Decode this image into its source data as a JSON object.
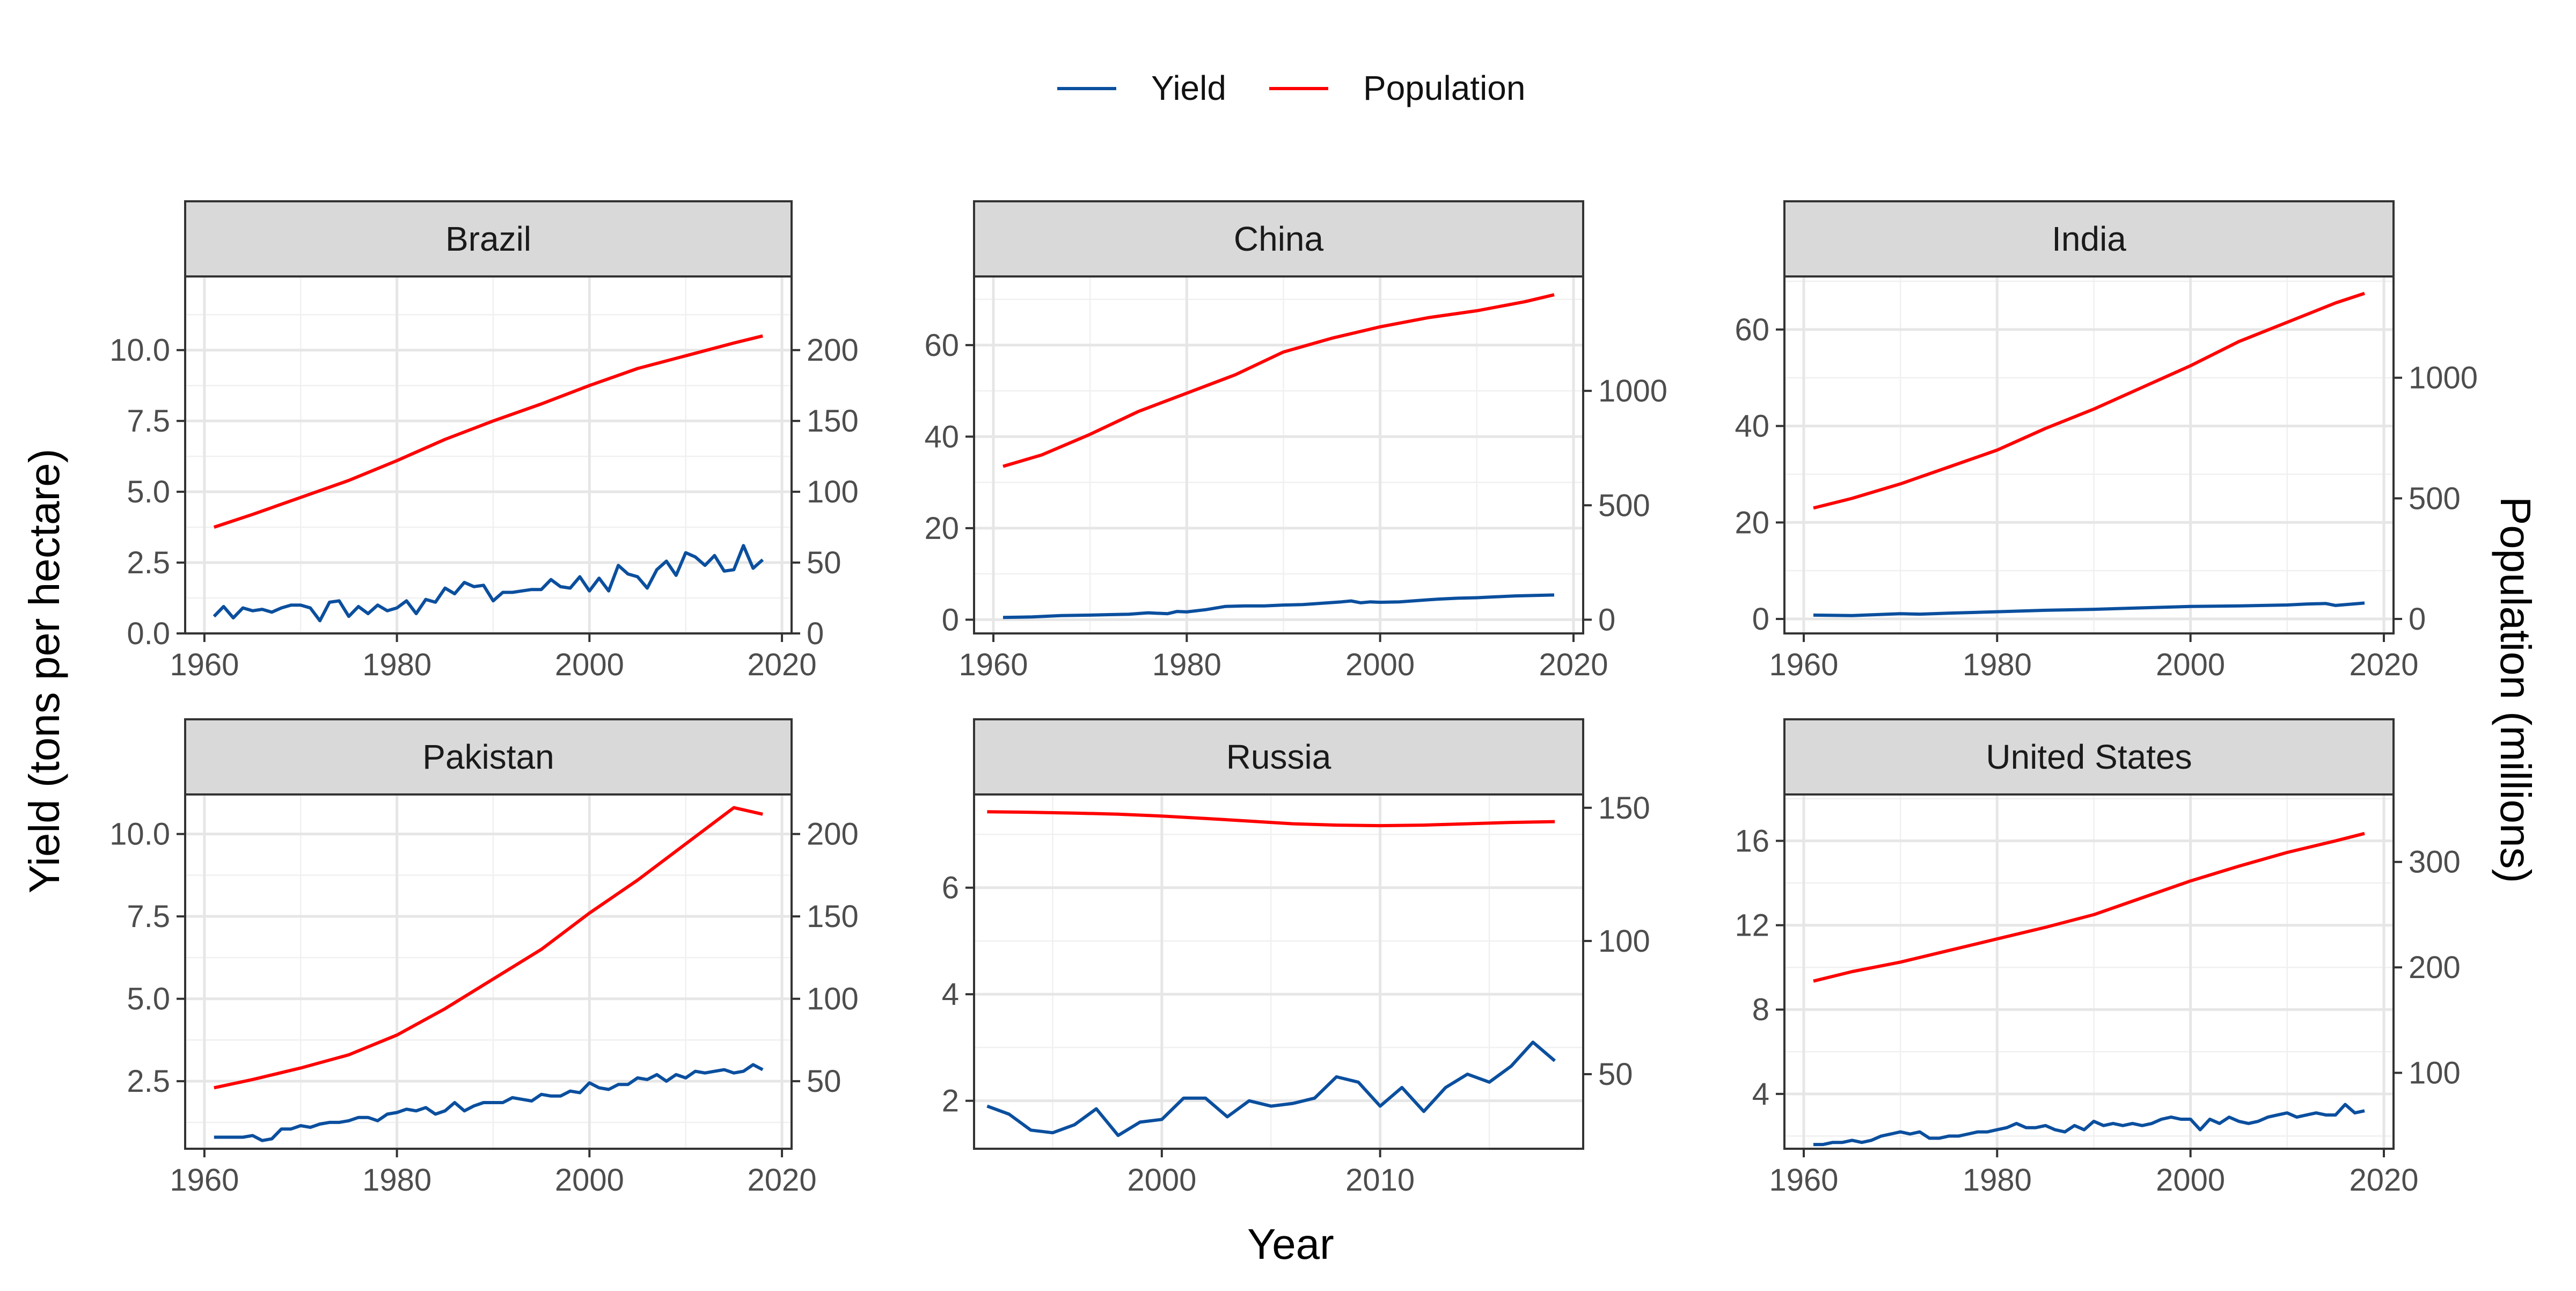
{
  "figure": {
    "legend": [
      {
        "name": "Yield",
        "color": "#0B4F9E"
      },
      {
        "name": "Population",
        "color": "#FF0000"
      }
    ],
    "xlabel": "Year",
    "ylabel_left": "Yield (tons per hectare)",
    "ylabel_right": "Population (millions)"
  },
  "chart_data": [
    {
      "type": "line",
      "title": "Brazil",
      "xlim": [
        1958,
        2021
      ],
      "x_ticks": [
        1960,
        1980,
        2000,
        2020
      ],
      "ylim": [
        0,
        12.6
      ],
      "y_ticks": [
        0.0,
        2.5,
        5.0,
        7.5,
        10.0
      ],
      "y_tick_labels": [
        "0.0",
        "2.5",
        "5.0",
        "7.5",
        "10.0"
      ],
      "y2_ticks": [
        0,
        50,
        100,
        150,
        200
      ],
      "y2_tick_labels": [
        "0",
        "50",
        "100",
        "150",
        "200"
      ],
      "pop_scale": 20.0,
      "series": [
        {
          "name": "Yield",
          "axis": "left",
          "x": [
            1961,
            1962,
            1963,
            1964,
            1965,
            1966,
            1967,
            1968,
            1969,
            1970,
            1971,
            1972,
            1973,
            1974,
            1975,
            1976,
            1977,
            1978,
            1979,
            1980,
            1981,
            1982,
            1983,
            1984,
            1985,
            1986,
            1987,
            1988,
            1989,
            1990,
            1991,
            1992,
            1993,
            1994,
            1995,
            1996,
            1997,
            1998,
            1999,
            2000,
            2001,
            2002,
            2003,
            2004,
            2005,
            2006,
            2007,
            2008,
            2009,
            2010,
            2011,
            2012,
            2013,
            2014,
            2015,
            2016,
            2017,
            2018
          ],
          "values": [
            0.6,
            0.95,
            0.55,
            0.9,
            0.8,
            0.85,
            0.75,
            0.9,
            1.0,
            1.0,
            0.9,
            0.45,
            1.1,
            1.15,
            0.6,
            0.95,
            0.7,
            1.0,
            0.8,
            0.9,
            1.15,
            0.7,
            1.2,
            1.1,
            1.6,
            1.4,
            1.8,
            1.65,
            1.7,
            1.15,
            1.45,
            1.45,
            1.5,
            1.55,
            1.55,
            1.9,
            1.65,
            1.6,
            2.0,
            1.5,
            1.95,
            1.5,
            2.4,
            2.1,
            2.0,
            1.6,
            2.25,
            2.55,
            2.05,
            2.85,
            2.7,
            2.4,
            2.75,
            2.2,
            2.25,
            3.1,
            2.3,
            2.6
          ]
        },
        {
          "name": "Population",
          "axis": "right",
          "x": [
            1961,
            1965,
            1970,
            1975,
            1980,
            1985,
            1990,
            1995,
            2000,
            2005,
            2010,
            2015,
            2018
          ],
          "values": [
            75,
            84,
            96,
            108,
            122,
            137,
            150,
            162,
            175,
            187,
            196,
            205,
            210
          ]
        }
      ]
    },
    {
      "type": "line",
      "title": "China",
      "xlim": [
        1958,
        2021
      ],
      "x_ticks": [
        1960,
        1980,
        2000,
        2020
      ],
      "ylim": [
        -3,
        75
      ],
      "y_ticks": [
        0,
        20,
        40,
        60
      ],
      "y_tick_labels": [
        "0",
        "20",
        "40",
        "60"
      ],
      "y2_ticks": [
        0,
        500,
        1000
      ],
      "y2_tick_labels": [
        "0",
        "500",
        "1000"
      ],
      "pop_scale": 20.0,
      "series": [
        {
          "name": "Yield",
          "axis": "left",
          "x": [
            1961,
            1964,
            1967,
            1970,
            1972,
            1974,
            1976,
            1978,
            1979,
            1980,
            1982,
            1984,
            1986,
            1988,
            1990,
            1992,
            1994,
            1996,
            1997,
            1998,
            1999,
            2000,
            2002,
            2004,
            2006,
            2008,
            2010,
            2012,
            2014,
            2016,
            2018
          ],
          "values": [
            0.5,
            0.6,
            0.9,
            1.0,
            1.1,
            1.2,
            1.5,
            1.3,
            1.8,
            1.7,
            2.2,
            2.9,
            3.0,
            3.0,
            3.2,
            3.3,
            3.6,
            3.9,
            4.1,
            3.7,
            3.9,
            3.8,
            3.9,
            4.2,
            4.5,
            4.7,
            4.8,
            5.0,
            5.2,
            5.3,
            5.4
          ]
        },
        {
          "name": "Population",
          "axis": "right",
          "x": [
            1961,
            1965,
            1970,
            1975,
            1980,
            1985,
            1990,
            1995,
            2000,
            2005,
            2010,
            2015,
            2018
          ],
          "values": [
            670,
            720,
            810,
            910,
            990,
            1070,
            1170,
            1230,
            1280,
            1320,
            1350,
            1390,
            1420
          ]
        }
      ]
    },
    {
      "type": "line",
      "title": "India",
      "xlim": [
        1958,
        2021
      ],
      "x_ticks": [
        1960,
        1980,
        2000,
        2020
      ],
      "ylim": [
        -3,
        71
      ],
      "y_ticks": [
        0,
        20,
        40,
        60
      ],
      "y_tick_labels": [
        "0",
        "20",
        "40",
        "60"
      ],
      "y2_ticks": [
        0,
        500,
        1000
      ],
      "y2_tick_labels": [
        "0",
        "500",
        "1000"
      ],
      "pop_scale": 20.0,
      "series": [
        {
          "name": "Yield",
          "axis": "left",
          "x": [
            1961,
            1965,
            1970,
            1972,
            1975,
            1980,
            1985,
            1990,
            1995,
            2000,
            2005,
            2010,
            2012,
            2014,
            2015,
            2018
          ],
          "values": [
            0.8,
            0.7,
            1.1,
            1.0,
            1.2,
            1.5,
            1.8,
            2.0,
            2.3,
            2.6,
            2.7,
            2.9,
            3.1,
            3.2,
            2.8,
            3.3
          ]
        },
        {
          "name": "Population",
          "axis": "right",
          "x": [
            1961,
            1965,
            1970,
            1975,
            1980,
            1985,
            1990,
            1995,
            2000,
            2005,
            2010,
            2015,
            2018
          ],
          "values": [
            460,
            500,
            560,
            630,
            700,
            790,
            870,
            960,
            1050,
            1150,
            1230,
            1310,
            1350
          ]
        }
      ]
    },
    {
      "type": "line",
      "title": "Pakistan",
      "xlim": [
        1958,
        2021
      ],
      "x_ticks": [
        1960,
        1980,
        2000,
        2020
      ],
      "ylim": [
        0.45,
        11.2
      ],
      "y_ticks": [
        2.5,
        5.0,
        7.5,
        10.0
      ],
      "y_tick_labels": [
        "2.5",
        "5.0",
        "7.5",
        "10.0"
      ],
      "y2_ticks": [
        50,
        100,
        150,
        200
      ],
      "y2_tick_labels": [
        "50",
        "100",
        "150",
        "200"
      ],
      "pop_scale": 20.0,
      "series": [
        {
          "name": "Yield",
          "axis": "left",
          "x": [
            1961,
            1962,
            1963,
            1964,
            1965,
            1966,
            1967,
            1968,
            1969,
            1970,
            1971,
            1972,
            1973,
            1974,
            1975,
            1976,
            1977,
            1978,
            1979,
            1980,
            1981,
            1982,
            1983,
            1984,
            1985,
            1986,
            1987,
            1988,
            1989,
            1990,
            1991,
            1992,
            1993,
            1994,
            1995,
            1996,
            1997,
            1998,
            1999,
            2000,
            2001,
            2002,
            2003,
            2004,
            2005,
            2006,
            2007,
            2008,
            2009,
            2010,
            2011,
            2012,
            2013,
            2014,
            2015,
            2016,
            2017,
            2018
          ],
          "values": [
            0.8,
            0.8,
            0.8,
            0.8,
            0.85,
            0.7,
            0.75,
            1.05,
            1.05,
            1.15,
            1.1,
            1.2,
            1.25,
            1.25,
            1.3,
            1.4,
            1.4,
            1.3,
            1.5,
            1.55,
            1.65,
            1.6,
            1.7,
            1.5,
            1.6,
            1.85,
            1.6,
            1.75,
            1.85,
            1.85,
            1.85,
            2.0,
            1.95,
            1.9,
            2.1,
            2.05,
            2.05,
            2.2,
            2.15,
            2.45,
            2.3,
            2.25,
            2.4,
            2.4,
            2.6,
            2.55,
            2.7,
            2.5,
            2.7,
            2.6,
            2.8,
            2.75,
            2.8,
            2.85,
            2.75,
            2.8,
            3.0,
            2.85
          ]
        },
        {
          "name": "Population",
          "axis": "right",
          "x": [
            1961,
            1965,
            1970,
            1975,
            1980,
            1985,
            1990,
            1995,
            2000,
            2005,
            2010,
            2015,
            2018
          ],
          "values": [
            46,
            51,
            58,
            66,
            78,
            94,
            112,
            130,
            152,
            172,
            194,
            216,
            212
          ]
        }
      ]
    },
    {
      "type": "line",
      "title": "Russia",
      "xlim": [
        1991.4,
        2019.3
      ],
      "x_ticks": [
        2000,
        2010
      ],
      "ylim": [
        1.1,
        7.75
      ],
      "y_ticks": [
        2,
        4,
        6
      ],
      "y_tick_labels": [
        "2",
        "4",
        "6"
      ],
      "y2_ticks": [
        50,
        100,
        150
      ],
      "y2_tick_labels": [
        "50",
        "100",
        "150"
      ],
      "pop_scale": 20.0,
      "series": [
        {
          "name": "Yield",
          "axis": "left",
          "x": [
            1992,
            1993,
            1994,
            1995,
            1996,
            1997,
            1998,
            1999,
            2000,
            2001,
            2002,
            2003,
            2004,
            2005,
            2006,
            2007,
            2008,
            2009,
            2010,
            2011,
            2012,
            2013,
            2014,
            2015,
            2016,
            2017,
            2018
          ],
          "values": [
            1.9,
            1.75,
            1.45,
            1.4,
            1.55,
            1.85,
            1.35,
            1.6,
            1.65,
            2.05,
            2.05,
            1.7,
            2.0,
            1.9,
            1.95,
            2.05,
            2.45,
            2.35,
            1.9,
            2.25,
            1.8,
            2.25,
            2.5,
            2.35,
            2.65,
            3.1,
            2.75
          ]
        },
        {
          "name": "Population",
          "axis": "right",
          "x": [
            1992,
            1994,
            1996,
            1998,
            2000,
            2002,
            2004,
            2006,
            2008,
            2010,
            2012,
            2014,
            2016,
            2018
          ],
          "values": [
            148.5,
            148.3,
            148.0,
            147.6,
            146.9,
            146.0,
            145.0,
            144.0,
            143.5,
            143.3,
            143.5,
            144.0,
            144.5,
            144.8
          ]
        }
      ]
    },
    {
      "type": "line",
      "title": "United States",
      "xlim": [
        1958,
        2021
      ],
      "x_ticks": [
        1960,
        1980,
        2000,
        2020
      ],
      "ylim": [
        1.4,
        18.2
      ],
      "y_ticks": [
        4,
        8,
        12,
        16
      ],
      "y_tick_labels": [
        "4",
        "8",
        "12",
        "16"
      ],
      "y2_ticks": [
        100,
        200,
        300
      ],
      "y2_tick_labels": [
        "100",
        "200",
        "300"
      ],
      "pop_scale": 20.0,
      "series": [
        {
          "name": "Yield",
          "axis": "left",
          "x": [
            1961,
            1962,
            1963,
            1964,
            1965,
            1966,
            1967,
            1968,
            1969,
            1970,
            1971,
            1972,
            1973,
            1974,
            1975,
            1976,
            1977,
            1978,
            1979,
            1980,
            1981,
            1982,
            1983,
            1984,
            1985,
            1986,
            1987,
            1988,
            1989,
            1990,
            1991,
            1992,
            1993,
            1994,
            1995,
            1996,
            1997,
            1998,
            1999,
            2000,
            2001,
            2002,
            2003,
            2004,
            2005,
            2006,
            2007,
            2008,
            2009,
            2010,
            2011,
            2012,
            2013,
            2014,
            2015,
            2016,
            2017,
            2018
          ],
          "values": [
            1.6,
            1.6,
            1.7,
            1.7,
            1.8,
            1.7,
            1.8,
            2.0,
            2.1,
            2.2,
            2.1,
            2.2,
            1.9,
            1.9,
            2.0,
            2.0,
            2.1,
            2.2,
            2.2,
            2.3,
            2.4,
            2.6,
            2.4,
            2.4,
            2.5,
            2.3,
            2.2,
            2.5,
            2.3,
            2.7,
            2.5,
            2.6,
            2.5,
            2.6,
            2.5,
            2.6,
            2.8,
            2.9,
            2.8,
            2.8,
            2.3,
            2.8,
            2.6,
            2.9,
            2.7,
            2.6,
            2.7,
            2.9,
            3.0,
            3.1,
            2.9,
            3.0,
            3.1,
            3.0,
            3.0,
            3.5,
            3.1,
            3.2
          ]
        },
        {
          "name": "Population",
          "axis": "right",
          "x": [
            1961,
            1965,
            1970,
            1975,
            1980,
            1985,
            1990,
            1995,
            2000,
            2005,
            2010,
            2015,
            2018
          ],
          "values": [
            187,
            196,
            205,
            216,
            227,
            238,
            250,
            266,
            282,
            296,
            309,
            320,
            327
          ]
        }
      ]
    }
  ]
}
